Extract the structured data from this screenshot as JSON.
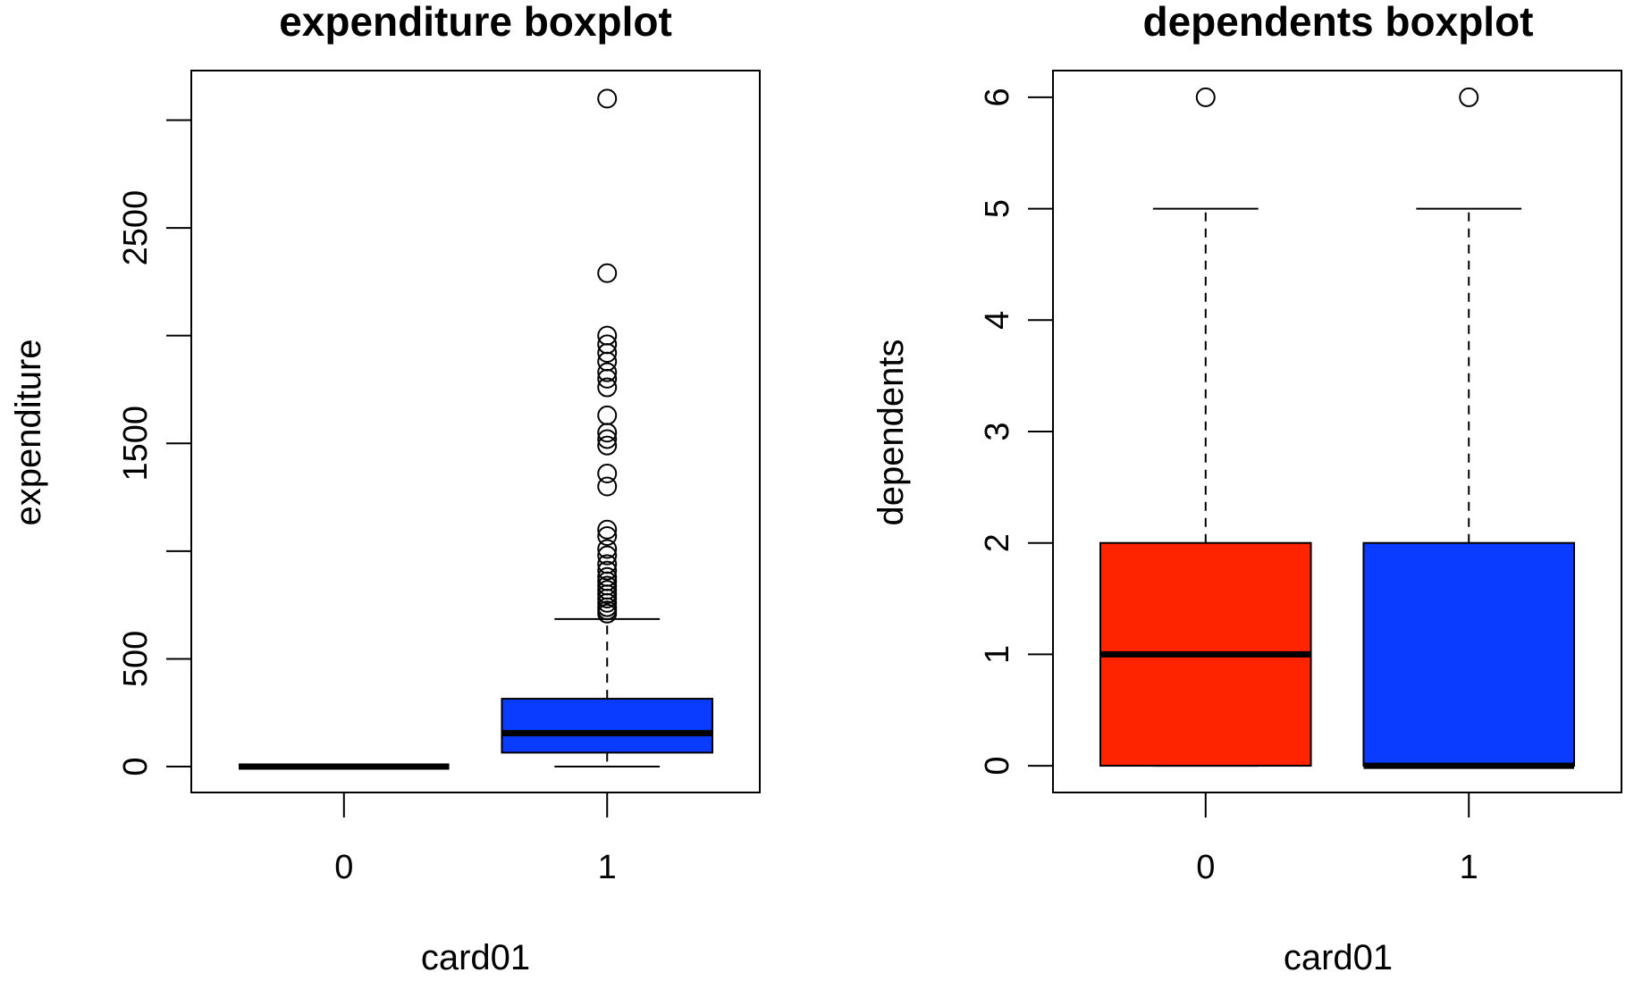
{
  "colors": {
    "group0": "#ff2400",
    "group1": "#0a3cff",
    "ink": "#000000"
  },
  "chart_data": [
    {
      "type": "boxplot",
      "title": "expenditure boxplot",
      "xlabel": "card01",
      "ylabel": "expenditure",
      "ylim": [
        -120,
        3230
      ],
      "y_ticks": [
        0,
        500,
        1000,
        1500,
        2000,
        2500,
        3000
      ],
      "y_tick_labels": [
        "0",
        "500",
        "",
        "1500",
        "",
        "2500",
        ""
      ],
      "categories": [
        "0",
        "1"
      ],
      "boxes": [
        {
          "category": "0",
          "color": "#ff2400",
          "min": 0,
          "q1": 0,
          "median": 0,
          "q3": 0,
          "max": 0,
          "outliers": []
        },
        {
          "category": "1",
          "color": "#0a3cff",
          "min": 0,
          "q1": 65,
          "median": 155,
          "q3": 315,
          "max": 685,
          "outliers": [
            3100,
            2290,
            2000,
            1960,
            1920,
            1880,
            1830,
            1800,
            1760,
            1630,
            1550,
            1520,
            1490,
            1360,
            1300,
            1100,
            1070,
            1010,
            980,
            940,
            910,
            880,
            860,
            840,
            820,
            800,
            780,
            760,
            740,
            725,
            710
          ]
        }
      ]
    },
    {
      "type": "boxplot",
      "title": "dependents boxplot",
      "xlabel": "card01",
      "ylabel": "dependents",
      "ylim": [
        -0.24,
        6.24
      ],
      "y_ticks": [
        0,
        1,
        2,
        3,
        4,
        5,
        6
      ],
      "y_tick_labels": [
        "0",
        "1",
        "2",
        "3",
        "4",
        "5",
        "6"
      ],
      "categories": [
        "0",
        "1"
      ],
      "boxes": [
        {
          "category": "0",
          "color": "#ff2400",
          "min": 0,
          "q1": 0,
          "median": 1,
          "q3": 2,
          "max": 5,
          "outliers": [
            6
          ]
        },
        {
          "category": "1",
          "color": "#0a3cff",
          "min": 0,
          "q1": 0,
          "median": 0,
          "q3": 2,
          "max": 5,
          "outliers": [
            6
          ]
        }
      ]
    }
  ]
}
